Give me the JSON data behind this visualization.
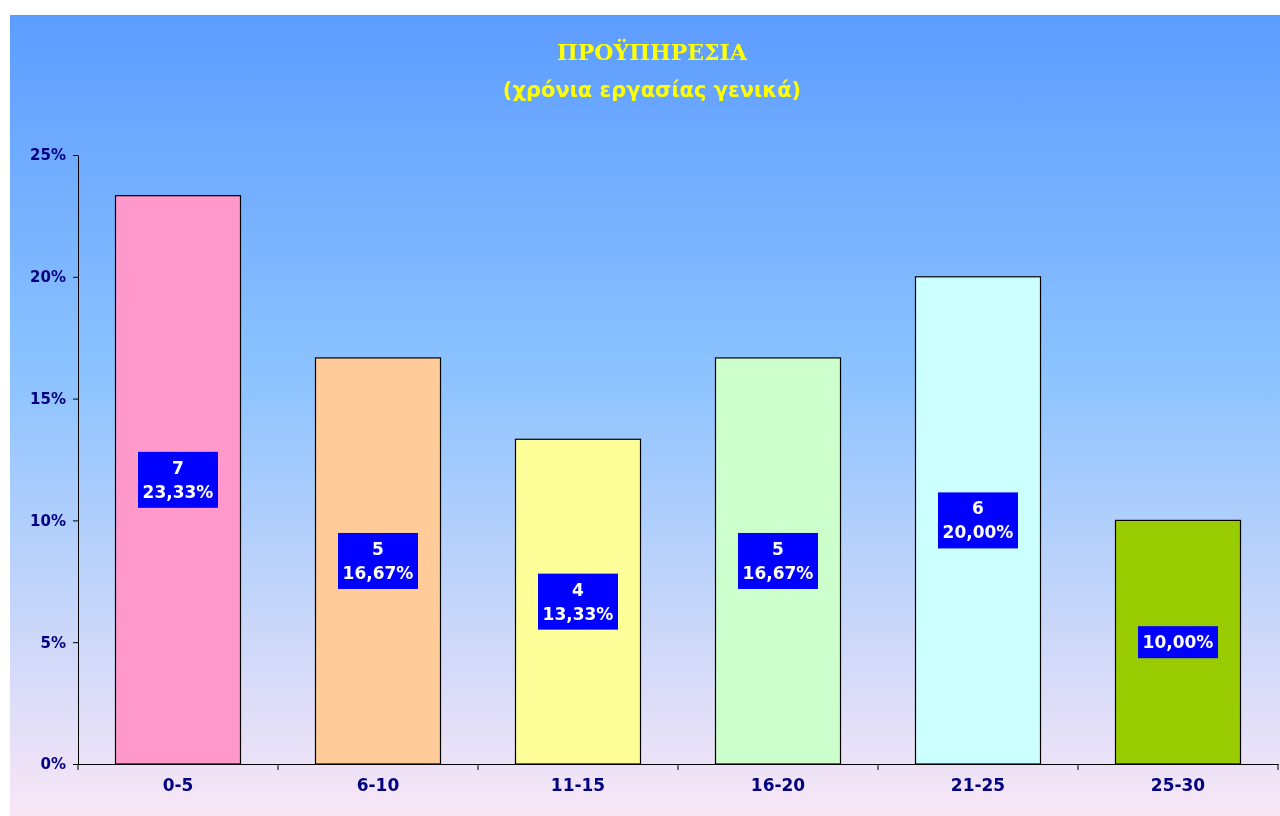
{
  "chart_data": {
    "type": "bar",
    "title": "ΠΡΟΫΠΗΡΕΣΙΑ",
    "subtitle": "(χρόνια εργασίας γενικά)",
    "categories": [
      "0-5",
      "6-10",
      "11-15",
      "16-20",
      "21-25",
      "25-30"
    ],
    "values": [
      23.33,
      16.67,
      13.33,
      16.67,
      20,
      10
    ],
    "colors": [
      "#ff99cc",
      "#ffcc99",
      "#ffff99",
      "#ccffcc",
      "#ccffff",
      "#99cc00"
    ],
    "value_labels": [
      "7\n23,33%",
      "5\n16,67%",
      "4\n13,33%",
      "5\n16,67%",
      "6\n20,00%",
      "10,00%"
    ],
    "ylim": [
      0,
      25
    ],
    "yticks": [
      {
        "value": 0,
        "label": "0%"
      },
      {
        "value": 5,
        "label": "5%"
      },
      {
        "value": 10,
        "label": "10%"
      },
      {
        "value": 15,
        "label": "15%"
      },
      {
        "value": 20,
        "label": "20%"
      },
      {
        "value": 25,
        "label": "25%"
      }
    ],
    "grid": false
  }
}
